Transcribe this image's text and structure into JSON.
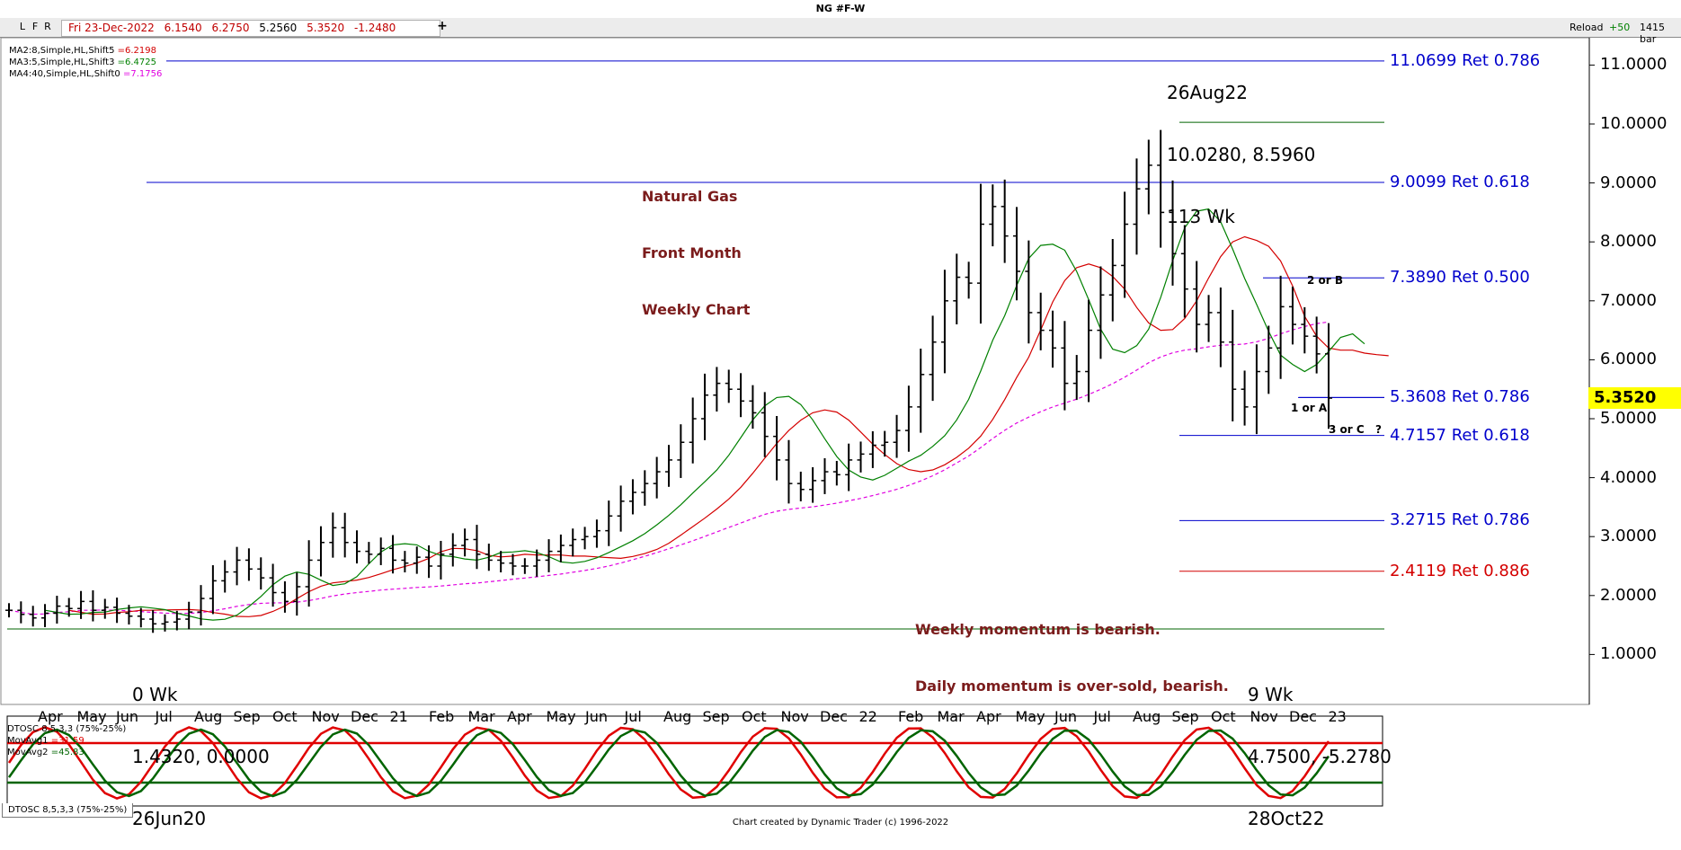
{
  "window": {
    "title": "NG #F-W"
  },
  "toolbar": {
    "buttons": [
      "L",
      "F",
      "R"
    ],
    "ohlc": {
      "date": "Fri 23-Dec-2022",
      "open": "6.1540",
      "high": "6.2750",
      "low": "5.2560",
      "close": "5.3520",
      "change": "-1.2480"
    },
    "plus": "+",
    "reload": "Reload",
    "increment": "+50",
    "bar_count": "1415 bar"
  },
  "indicators": {
    "ma2": {
      "label": "MA2:8,Simple,HL,Shift5",
      "value": "=6.2198",
      "color": "#d40000"
    },
    "ma3": {
      "label": "MA3:5,Simple,HL,Shift3",
      "value": "=6.4725",
      "color": "#008000"
    },
    "ma4": {
      "label": "MA4:40,Simple,HL,Shift0",
      "value": "=7.1756",
      "color": "#e000e0"
    }
  },
  "annotations": {
    "title": [
      "Natural Gas",
      "Front Month",
      "Weekly Chart"
    ],
    "top_swing": [
      "26Aug22",
      "10.0280, 8.5960",
      "113 Wk"
    ],
    "start_swing": [
      "0 Wk",
      "1.4320, 0.0000",
      "26Jun20"
    ],
    "low_swing": [
      "9 Wk",
      "4.7500, -5.2780",
      "28Oct22"
    ],
    "momentum": [
      "Weekly momentum is bearish.",
      "Daily momentum is over-sold, bearish."
    ],
    "wave_b": "2 or B",
    "wave_a": "1 or A",
    "wave_c": "3 or C",
    "question": "?"
  },
  "retracements": [
    {
      "price": 11.0699,
      "label": "11.0699 Ret 0.786",
      "color": "#0000cc"
    },
    {
      "price": 9.0099,
      "label": "9.0099 Ret 0.618",
      "color": "#0000cc"
    },
    {
      "price": 7.389,
      "label": "7.3890 Ret 0.500",
      "color": "#0000cc"
    },
    {
      "price": 5.3608,
      "label": "5.3608 Ret 0.786",
      "color": "#0000cc"
    },
    {
      "price": 4.7157,
      "label": "4.7157 Ret 0.618",
      "color": "#0000cc"
    },
    {
      "price": 3.2715,
      "label": "3.2715 Ret 0.786",
      "color": "#0000cc"
    },
    {
      "price": 2.4119,
      "label": "2.4119 Ret 0.886",
      "color": "#d40000"
    }
  ],
  "price_tag": {
    "value": "5.3520",
    "color": "#ffff00"
  },
  "oscillator": {
    "title": "DTOSC 8,5,3,3 (75%-25%)",
    "mov1": {
      "label": "MovAvg1",
      "value": "=31.59",
      "color": "#e00000"
    },
    "mov2": {
      "label": "MovAvg2",
      "value": "=45.83",
      "color": "#006400"
    },
    "tab": "DTOSC 8,5,3,3 (75%-25%)",
    "upper_level": 75,
    "lower_level": 25,
    "upper_color": "#e00000",
    "lower_color": "#006400"
  },
  "footer": "Chart created by Dynamic Trader  (c) 1996-2022",
  "chart_data": {
    "type": "bar",
    "title": "NG #F-W",
    "ylim": [
      0.0,
      11.8
    ],
    "y_ticks": [
      "1.0000",
      "2.0000",
      "3.0000",
      "4.0000",
      "5.0000",
      "6.0000",
      "7.0000",
      "8.0000",
      "9.0000",
      "10.0000",
      "11.0000"
    ],
    "x_ticks": [
      "Apr",
      "May",
      "Jun",
      "Jul",
      "Aug",
      "Sep",
      "Oct",
      "Nov",
      "Dec",
      "21",
      "Feb",
      "Mar",
      "Apr",
      "May",
      "Jun",
      "Jul",
      "Aug",
      "Sep",
      "Oct",
      "Nov",
      "Dec",
      "22",
      "Feb",
      "Mar",
      "Apr",
      "May",
      "Jun",
      "Jul",
      "Aug",
      "Sep",
      "Oct",
      "Nov",
      "Dec",
      "23"
    ],
    "weekly_price_path": [
      1.75,
      1.68,
      1.62,
      1.7,
      1.82,
      1.78,
      1.9,
      1.75,
      1.8,
      1.7,
      1.65,
      1.6,
      1.52,
      1.55,
      1.6,
      1.72,
      1.95,
      2.25,
      2.4,
      2.6,
      2.45,
      2.3,
      2.05,
      1.9,
      2.15,
      2.6,
      2.9,
      3.15,
      2.9,
      2.75,
      2.7,
      2.8,
      2.6,
      2.55,
      2.65,
      2.5,
      2.7,
      2.85,
      2.95,
      2.7,
      2.6,
      2.55,
      2.5,
      2.5,
      2.6,
      2.75,
      2.85,
      2.95,
      3.0,
      3.1,
      3.35,
      3.6,
      3.75,
      3.9,
      4.1,
      4.3,
      4.6,
      5.0,
      5.4,
      5.6,
      5.5,
      5.3,
      5.1,
      4.7,
      4.3,
      3.9,
      3.8,
      3.95,
      4.1,
      4.05,
      4.3,
      4.4,
      4.55,
      4.6,
      4.8,
      5.2,
      5.75,
      6.3,
      7.0,
      7.4,
      7.3,
      8.3,
      8.6,
      8.1,
      7.5,
      6.8,
      6.5,
      6.2,
      5.6,
      5.8,
      6.5,
      7.1,
      7.6,
      8.3,
      8.9,
      9.3,
      8.5,
      7.8,
      7.2,
      6.6,
      6.8,
      6.3,
      5.5,
      5.2,
      5.8,
      6.2,
      6.9,
      6.6,
      6.4,
      6.1,
      5.35
    ],
    "sma_highlow_40_latest": 7.1756,
    "sma_highlow_8_latest": 6.2198,
    "sma_highlow_5_latest": 6.4725,
    "swing_high": {
      "date": "26Aug22",
      "price": 10.028
    },
    "swing_low_start": {
      "date": "26Jun20",
      "price": 1.432
    },
    "swing_low_recent": {
      "date": "28Oct22",
      "price": 4.75
    },
    "last_close": 5.352,
    "grid": false,
    "oscillator_ylim": [
      0,
      100
    ]
  }
}
